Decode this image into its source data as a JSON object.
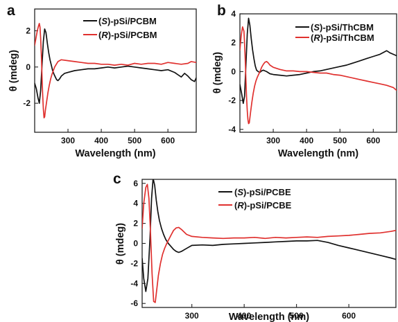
{
  "colors": {
    "S_series": "#111111",
    "R_series": "#e0302e",
    "axes": "#222222"
  },
  "chart_data": [
    {
      "type": "line",
      "panel": "a",
      "xlabel": "Wavelength (nm)",
      "ylabel": "θ (mdeg)",
      "xlim": [
        200,
        685
      ],
      "ylim": [
        -3.6,
        3.2
      ],
      "xticks": [
        300,
        400,
        500,
        600
      ],
      "yticks": [
        2,
        0,
        -2
      ],
      "legend_position": "top-right",
      "series": [
        {
          "name": "(S)-pSi/PCBM",
          "prefix": "(",
          "enantiomer": "S",
          "suffix": ")-pSi/PCBM",
          "color": "#111111",
          "x": [
            200,
            205,
            210,
            214,
            218,
            222,
            226,
            230,
            234,
            238,
            242,
            246,
            250,
            254,
            258,
            262,
            266,
            270,
            275,
            280,
            290,
            300,
            320,
            340,
            360,
            380,
            400,
            420,
            440,
            460,
            480,
            500,
            520,
            540,
            560,
            580,
            600,
            620,
            640,
            650,
            660,
            670,
            680,
            685
          ],
          "y": [
            -0.9,
            -1.2,
            -1.7,
            -2.0,
            -1.3,
            0.1,
            1.4,
            2.1,
            1.9,
            1.3,
            0.8,
            0.4,
            0.1,
            -0.2,
            -0.4,
            -0.55,
            -0.7,
            -0.75,
            -0.65,
            -0.5,
            -0.35,
            -0.3,
            -0.2,
            -0.15,
            -0.1,
            -0.1,
            -0.05,
            0.0,
            -0.05,
            0.0,
            0.05,
            0.0,
            -0.05,
            -0.1,
            -0.15,
            -0.2,
            -0.15,
            -0.3,
            -0.55,
            -0.35,
            -0.5,
            -0.7,
            -0.8,
            -0.6
          ]
        },
        {
          "name": "(R)-pSi/PCBM",
          "prefix": "(",
          "enantiomer": "R",
          "suffix": ")-pSi/PCBM",
          "color": "#e0302e",
          "x": [
            200,
            204,
            208,
            212,
            214,
            216,
            218,
            220,
            222,
            224,
            226,
            228,
            230,
            232,
            236,
            240,
            244,
            248,
            252,
            256,
            260,
            265,
            270,
            280,
            300,
            320,
            340,
            360,
            380,
            400,
            420,
            440,
            460,
            480,
            500,
            520,
            540,
            560,
            580,
            600,
            620,
            640,
            660,
            670,
            685
          ],
          "y": [
            1.2,
            1.6,
            2.0,
            2.3,
            2.4,
            2.2,
            1.6,
            0.7,
            -0.5,
            -1.5,
            -2.3,
            -2.8,
            -2.75,
            -2.4,
            -1.9,
            -1.4,
            -1.0,
            -0.65,
            -0.4,
            -0.2,
            0.0,
            0.15,
            0.3,
            0.4,
            0.35,
            0.3,
            0.25,
            0.2,
            0.2,
            0.15,
            0.15,
            0.1,
            0.15,
            0.1,
            0.2,
            0.15,
            0.2,
            0.2,
            0.15,
            0.25,
            0.2,
            0.15,
            0.2,
            0.3,
            0.25
          ]
        }
      ]
    },
    {
      "type": "line",
      "panel": "b",
      "xlabel": "Wavelength (nm)",
      "ylabel": "θ (mdeg)",
      "xlim": [
        200,
        670
      ],
      "ylim": [
        -4.2,
        4.0
      ],
      "xticks": [
        300,
        400,
        500,
        600
      ],
      "yticks": [
        4,
        2,
        0,
        -2,
        -4
      ],
      "legend_position": "top-right",
      "series": [
        {
          "name": "(S)-pSi/ThCBM",
          "prefix": "(",
          "enantiomer": "S",
          "suffix": ")-pSi/ThCBM",
          "color": "#111111",
          "x": [
            200,
            205,
            210,
            214,
            218,
            222,
            226,
            230,
            234,
            238,
            242,
            246,
            250,
            255,
            260,
            265,
            270,
            280,
            290,
            300,
            320,
            340,
            360,
            380,
            400,
            420,
            440,
            460,
            480,
            500,
            520,
            540,
            560,
            580,
            600,
            620,
            640,
            650,
            660,
            670
          ],
          "y": [
            -0.9,
            -1.5,
            -2.2,
            -1.7,
            0.5,
            2.6,
            3.7,
            3.2,
            2.3,
            1.5,
            0.9,
            0.4,
            0.1,
            0.0,
            -0.05,
            0.05,
            0.1,
            0.0,
            -0.15,
            -0.2,
            -0.25,
            -0.3,
            -0.25,
            -0.2,
            -0.1,
            0.0,
            0.05,
            0.15,
            0.25,
            0.35,
            0.45,
            0.6,
            0.75,
            0.9,
            1.05,
            1.2,
            1.45,
            1.3,
            1.2,
            1.1
          ]
        },
        {
          "name": "(R)-pSi/ThCBM",
          "prefix": "(",
          "enantiomer": "R",
          "suffix": ")-pSi/ThCBM",
          "color": "#e0302e",
          "x": [
            200,
            204,
            208,
            212,
            214,
            216,
            218,
            220,
            222,
            224,
            226,
            228,
            230,
            232,
            236,
            240,
            244,
            248,
            252,
            256,
            260,
            265,
            270,
            275,
            280,
            285,
            290,
            300,
            320,
            340,
            360,
            380,
            400,
            420,
            440,
            460,
            480,
            500,
            520,
            540,
            560,
            580,
            600,
            620,
            640,
            660,
            670
          ],
          "y": [
            1.5,
            2.5,
            3.1,
            2.8,
            2.0,
            0.8,
            -0.6,
            -1.8,
            -2.7,
            -3.3,
            -3.6,
            -3.55,
            -3.2,
            -2.8,
            -2.1,
            -1.5,
            -1.0,
            -0.65,
            -0.4,
            -0.2,
            0.0,
            0.3,
            0.5,
            0.65,
            0.7,
            0.6,
            0.45,
            0.3,
            0.15,
            0.05,
            0.05,
            0.0,
            0.0,
            -0.05,
            -0.1,
            -0.1,
            -0.2,
            -0.25,
            -0.35,
            -0.45,
            -0.55,
            -0.65,
            -0.75,
            -0.85,
            -0.95,
            -1.1,
            -1.3
          ]
        }
      ]
    },
    {
      "type": "line",
      "panel": "c",
      "xlabel": "Wavelength (nm)",
      "ylabel": "θ (mdeg)",
      "xlim": [
        205,
        690
      ],
      "ylim": [
        -6.4,
        6.4
      ],
      "xticks": [
        300,
        400,
        500,
        600
      ],
      "yticks": [
        6,
        4,
        2,
        0,
        -2,
        -4,
        -6
      ],
      "legend_position": "top-right",
      "series": [
        {
          "name": "(S)-pSi/PCBE",
          "prefix": "(",
          "enantiomer": "S",
          "suffix": ")-pSi/PCBE",
          "color": "#111111",
          "x": [
            205,
            208,
            212,
            216,
            220,
            223,
            226,
            229,
            232,
            235,
            238,
            242,
            246,
            250,
            255,
            260,
            265,
            270,
            275,
            280,
            290,
            300,
            320,
            340,
            360,
            380,
            400,
            420,
            440,
            460,
            480,
            500,
            520,
            540,
            560,
            580,
            600,
            620,
            640,
            660,
            680,
            690
          ],
          "y": [
            -1.5,
            -3.5,
            -4.8,
            -3.5,
            0.5,
            4.5,
            6.5,
            5.8,
            4.3,
            3.2,
            2.3,
            1.5,
            0.9,
            0.4,
            0.0,
            -0.3,
            -0.6,
            -0.8,
            -0.9,
            -0.8,
            -0.5,
            -0.2,
            -0.15,
            -0.2,
            -0.1,
            -0.05,
            0.0,
            0.05,
            0.1,
            0.15,
            0.2,
            0.25,
            0.25,
            0.3,
            0.1,
            -0.2,
            -0.45,
            -0.7,
            -0.95,
            -1.2,
            -1.45,
            -1.6
          ]
        },
        {
          "name": "(R)-pSi/PCBE",
          "prefix": "(",
          "enantiomer": "R",
          "suffix": ")-pSi/PCBE",
          "color": "#e0302e",
          "x": [
            205,
            208,
            212,
            215,
            218,
            221,
            224,
            227,
            230,
            233,
            236,
            240,
            244,
            248,
            252,
            256,
            260,
            265,
            270,
            275,
            280,
            290,
            300,
            320,
            340,
            360,
            380,
            400,
            420,
            440,
            460,
            480,
            500,
            520,
            540,
            560,
            580,
            600,
            620,
            640,
            660,
            680,
            690
          ],
          "y": [
            1.5,
            4.0,
            5.6,
            5.9,
            4.5,
            1.0,
            -3.0,
            -5.8,
            -5.9,
            -4.6,
            -3.2,
            -2.0,
            -1.1,
            -0.5,
            0.0,
            0.4,
            0.8,
            1.3,
            1.55,
            1.6,
            1.4,
            0.9,
            0.7,
            0.6,
            0.55,
            0.5,
            0.55,
            0.55,
            0.6,
            0.5,
            0.6,
            0.55,
            0.6,
            0.65,
            0.6,
            0.7,
            0.75,
            0.8,
            0.9,
            1.0,
            1.05,
            1.2,
            1.3
          ]
        }
      ]
    }
  ]
}
